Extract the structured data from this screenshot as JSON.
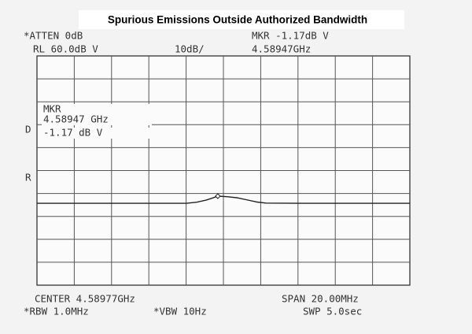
{
  "chart_data": {
    "type": "line",
    "title": "Spurious Emissions Outside Authorized Bandwidth",
    "annotations": [
      "*ATTEN 0dB",
      "MKR -1.17dB V",
      "RL 60.0dB V",
      "10dB/",
      "4.58947GHz",
      "MKR",
      "4.58947 GHz",
      "-1.17 dB V",
      "D",
      "R",
      "CENTER 4.58977GHz",
      "SPAN 20.00MHz",
      "*RBW 1.0MHz",
      "*VBW 10Hz",
      "SWP 5.0sec"
    ],
    "x": [
      4.57977,
      4.58378,
      4.58779,
      4.58834,
      4.58884,
      4.58918,
      4.58947,
      4.58997,
      4.59053,
      4.59104,
      4.59154,
      4.59205,
      4.59382,
      4.59677,
      4.59977
    ],
    "values": [
      -4.3,
      -4.3,
      -4.3,
      -3.8,
      -2.9,
      -2.0,
      -1.17,
      -1.4,
      -1.9,
      -2.8,
      -3.7,
      -4.2,
      -4.3,
      -4.3,
      -4.3
    ],
    "color": "#222222",
    "xlim": [
      4.57977,
      4.59977
    ],
    "ylim": [
      -40,
      60
    ],
    "grid": true
  }
}
